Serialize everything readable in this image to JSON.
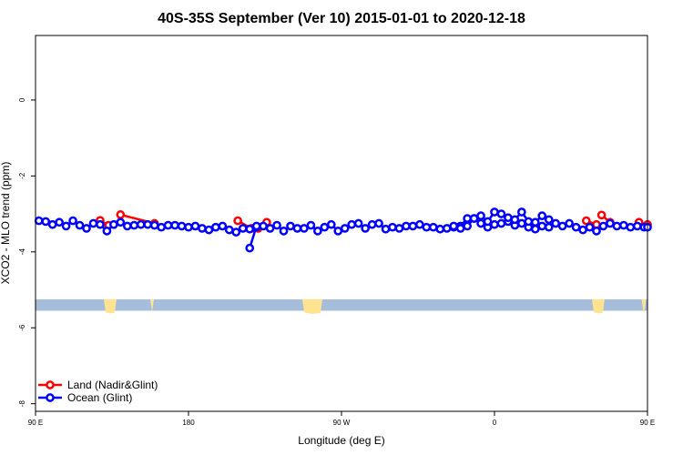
{
  "chart_data": {
    "type": "line",
    "title": "40S-35S September (Ver 10)   2015-01-01 to 2020-12-18",
    "xlabel": "Longitude (deg E)",
    "ylabel": "XCO2 - MLO trend (ppm)",
    "xlim": [
      90,
      450
    ],
    "ylim": [
      -8.2,
      1.7
    ],
    "x_ticks": [
      {
        "value": 90,
        "label": "90 E"
      },
      {
        "value": 180,
        "label": "180"
      },
      {
        "value": 270,
        "label": "90 W"
      },
      {
        "value": 360,
        "label": "0"
      },
      {
        "value": 450,
        "label": "90 E"
      },
      {
        "value": 540,
        "label": "180"
      }
    ],
    "y_ticks": [
      {
        "value": 0,
        "label": "0"
      },
      {
        "value": -2,
        "label": "-2"
      },
      {
        "value": -4,
        "label": "-4"
      },
      {
        "value": -6,
        "label": "-6"
      },
      {
        "value": -8,
        "label": "-8"
      }
    ],
    "grid": false,
    "legend_position": "bottom-left",
    "map_band": {
      "y_top": -5.25,
      "y_bottom": -5.55,
      "ocean_color": "#a6bddb",
      "land_color": "#fee391"
    },
    "series": [
      {
        "name": "Land (Nadir&Glint)",
        "color": "#ff0000",
        "segments": [
          {
            "x": [
              128,
              133
            ],
            "y": [
              -3.17,
              -3.3
            ]
          },
          {
            "x": [
              140,
              160
            ],
            "y": [
              -3.02,
              -3.25
            ]
          },
          {
            "x": [
              209,
              217,
              221,
              226
            ],
            "y": [
              -3.18,
              -3.38,
              -3.38,
              -3.22
            ]
          },
          {
            "x": [
              414,
              420
            ],
            "y": [
              -3.18,
              -3.28
            ]
          },
          {
            "x": [
              423,
              428
            ],
            "y": [
              -3.03,
              -3.22
            ]
          },
          {
            "x": [
              445,
              450
            ],
            "y": [
              -3.22,
              -3.28
            ]
          }
        ]
      },
      {
        "name": "Ocean (Glint)",
        "color": "#0000ff",
        "segments": [
          {
            "x": [
              92,
              96,
              100,
              104,
              108,
              112,
              116,
              120,
              124,
              128,
              132,
              136,
              140,
              144,
              148,
              152,
              156,
              160,
              164,
              168,
              172,
              176,
              180,
              184,
              188,
              192,
              196,
              200,
              204,
              208,
              212,
              216
            ],
            "y": [
              -3.18,
              -3.2,
              -3.28,
              -3.22,
              -3.32,
              -3.18,
              -3.3,
              -3.38,
              -3.25,
              -3.28,
              -3.45,
              -3.28,
              -3.22,
              -3.32,
              -3.3,
              -3.28,
              -3.28,
              -3.3,
              -3.35,
              -3.3,
              -3.3,
              -3.32,
              -3.35,
              -3.32,
              -3.38,
              -3.42,
              -3.35,
              -3.32,
              -3.42,
              -3.48,
              -3.38,
              -3.4
            ]
          },
          {
            "x": [
              220,
              224,
              228,
              232,
              236,
              240,
              244,
              248,
              252,
              256,
              260,
              264,
              268,
              272,
              276,
              280,
              284,
              288,
              292,
              296,
              300,
              304,
              308,
              312,
              316,
              320,
              324,
              328,
              332,
              336,
              340,
              344,
              348,
              352,
              356,
              360,
              364,
              368,
              372,
              376,
              380,
              384,
              388,
              392,
              396,
              400,
              404,
              408,
              412,
              416,
              420,
              424,
              428,
              432,
              436,
              440,
              444,
              448,
              450
            ],
            "y": [
              -3.35,
              -3.32,
              -3.38,
              -3.3,
              -3.45,
              -3.32,
              -3.38,
              -3.38,
              -3.3,
              -3.45,
              -3.35,
              -3.28,
              -3.45,
              -3.38,
              -3.28,
              -3.25,
              -3.38,
              -3.28,
              -3.25,
              -3.4,
              -3.35,
              -3.38,
              -3.32,
              -3.32,
              -3.28,
              -3.35,
              -3.35,
              -3.4,
              -3.38,
              -3.35,
              -3.32,
              -3.12,
              -3.12,
              -3.25,
              -3.35,
              -3.28,
              -3.25,
              -3.2,
              -3.3,
              -3.25,
              -3.35,
              -3.4,
              -3.32,
              -3.35,
              -3.25,
              -3.32,
              -3.25,
              -3.35,
              -3.42,
              -3.35,
              -3.45,
              -3.32,
              -3.25,
              -3.32,
              -3.3,
              -3.35,
              -3.32,
              -3.35,
              -3.35
            ]
          },
          {
            "x": [
              216,
              220
            ],
            "y": [
              -3.9,
              -3.32
            ]
          },
          {
            "x": [
              336,
              340,
              344,
              348,
              352,
              356,
              360,
              364,
              368,
              372,
              376,
              380,
              384,
              388,
              392
            ],
            "y": [
              -3.32,
              -3.38,
              -3.32,
              -3.12,
              -3.05,
              -3.2,
              -2.95,
              -3.0,
              -3.1,
              -3.15,
              -2.95,
              -3.2,
              -3.22,
              -3.05,
              -3.15
            ]
          }
        ]
      }
    ]
  }
}
